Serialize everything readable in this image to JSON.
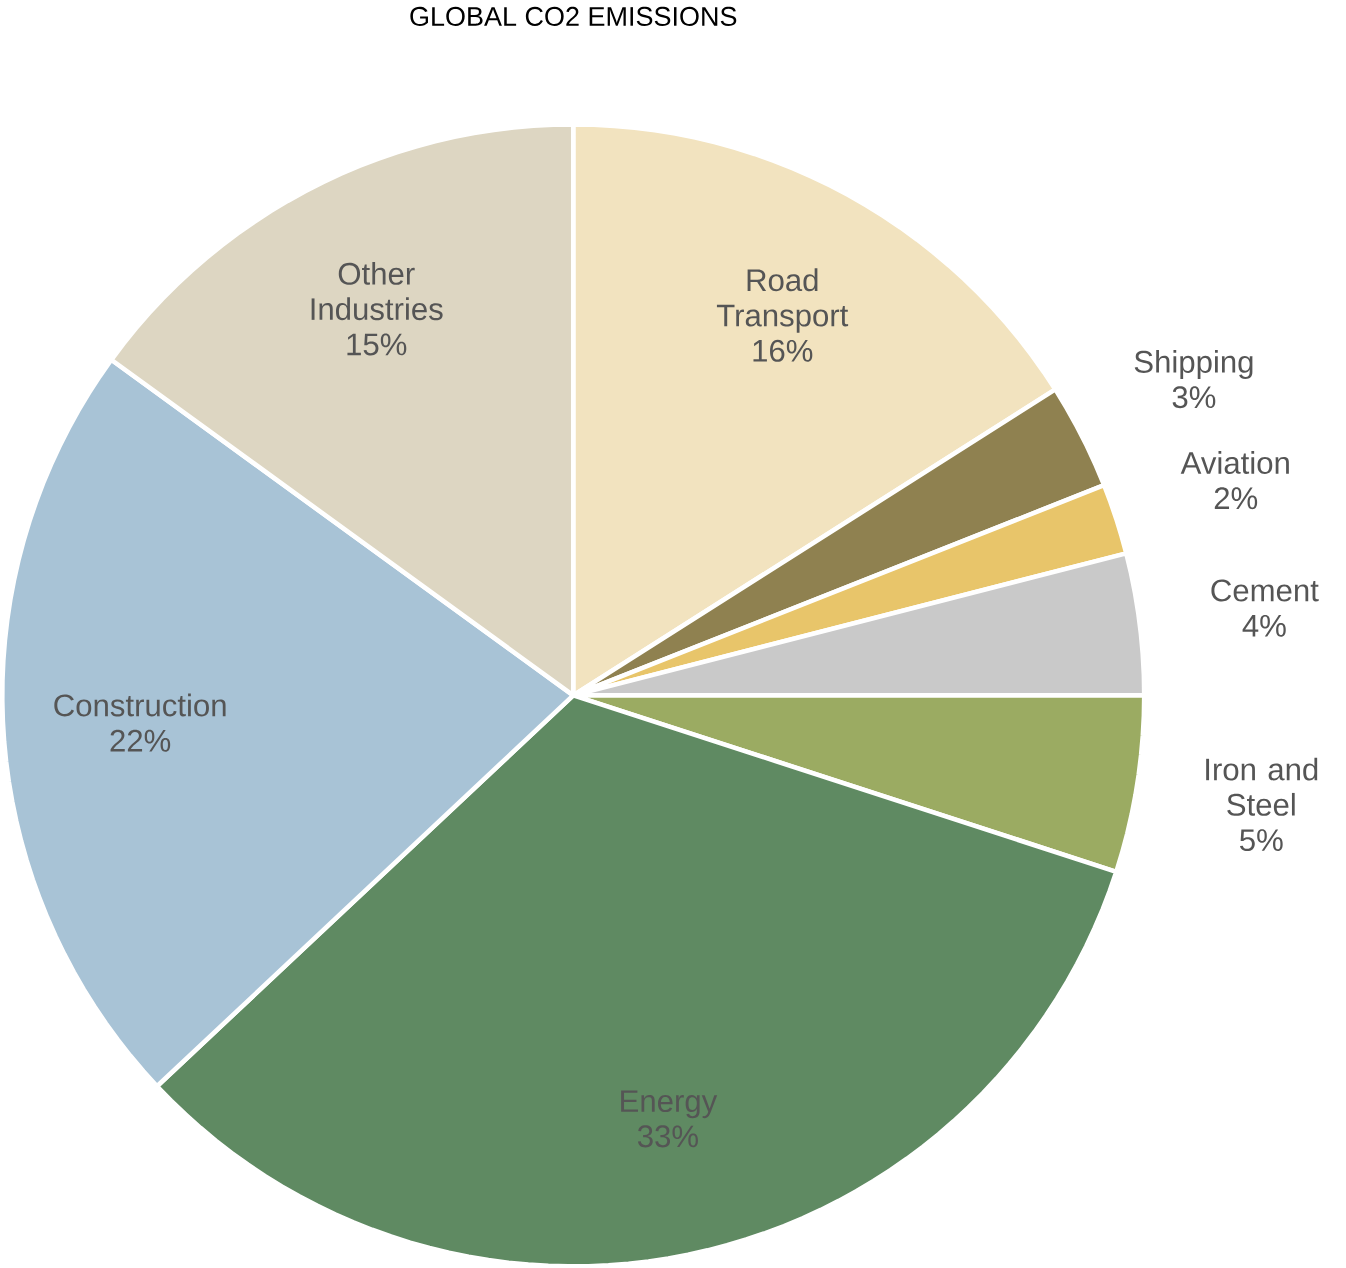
{
  "chart_data": {
    "type": "pie",
    "title": "GLOBAL CO2 EMISSIONS",
    "categories": [
      "Road Transport",
      "Shipping",
      "Aviation",
      "Cement",
      "Iron and Steel",
      "Energy",
      "Construction",
      "Other Industries"
    ],
    "values": [
      16,
      3,
      2,
      4,
      5,
      33,
      22,
      15
    ],
    "colors": [
      "#f2e3bf",
      "#8f8150",
      "#e8c56a",
      "#c9c9c9",
      "#9bab62",
      "#5f8a62",
      "#a8c3d6",
      "#ddd6c2"
    ],
    "value_labels": [
      "16%",
      "3%",
      "2%",
      "4%",
      "5%",
      "33%",
      "22%",
      "15%"
    ]
  }
}
